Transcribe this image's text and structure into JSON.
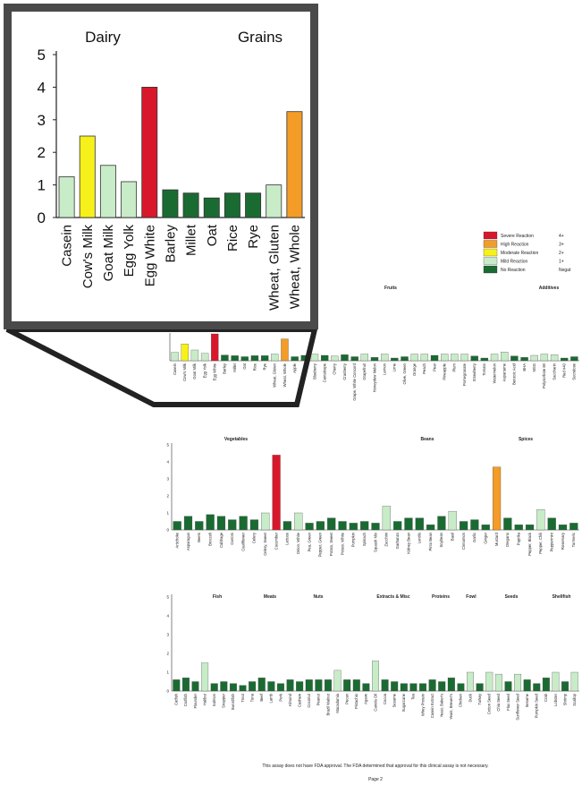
{
  "colors": {
    "severe": "#d8182a",
    "high": "#f39c27",
    "moderate": "#f6f11a",
    "mild": "#c8ebc8",
    "none": "#1a6b32",
    "frame": "#555555"
  },
  "legend": {
    "items": [
      {
        "label": "Severe Reaction",
        "range": "4+",
        "level": "severe"
      },
      {
        "label": "High Reaction",
        "range": "3+",
        "level": "high"
      },
      {
        "label": "Moderate Reaction",
        "range": "2+",
        "level": "moderate"
      },
      {
        "label": "Mild Reaction",
        "range": "1+",
        "level": "mild"
      },
      {
        "label": "No Reaction",
        "range": "Negat",
        "level": "none"
      }
    ]
  },
  "footer": {
    "note": "This assay does not have FDA approval. The FDA determined that approval for this clinical assay is not necessary.",
    "page": "Page 2"
  },
  "chart_data": [
    {
      "id": "zoom",
      "type": "bar",
      "groups": [
        "Dairy",
        "Grains"
      ],
      "yticks": [
        0,
        1,
        2,
        3,
        4,
        5
      ],
      "ylim": [
        0,
        5
      ],
      "categories": [
        "Casein",
        "Cow's Milk",
        "Goat Milk",
        "Egg Yolk",
        "Egg White",
        "Barley",
        "Millet",
        "Oat",
        "Rice",
        "Rye",
        "Wheat, Gluten",
        "Wheat, Whole"
      ],
      "values": [
        1.25,
        2.5,
        1.6,
        1.1,
        4.0,
        0.85,
        0.75,
        0.6,
        0.75,
        0.75,
        1.0,
        3.25
      ],
      "levels": [
        "mild",
        "moderate",
        "mild",
        "mild",
        "severe",
        "none",
        "none",
        "none",
        "none",
        "none",
        "mild",
        "high"
      ]
    },
    {
      "id": "panel1",
      "type": "bar",
      "groups": [
        "Fruits",
        "Additives"
      ],
      "categories": [
        "Casein",
        "Cow's Milk",
        "Goat Milk",
        "Egg Yolk",
        "Egg White",
        "Barley",
        "Millet",
        "Oat",
        "Rice",
        "Rye",
        "Wheat, Gluten",
        "Wheat, Whole",
        "Apple",
        "Banana",
        "Blueberry",
        "Cantaloupe",
        "Cherry",
        "Cranberry",
        "Grape, White Concord",
        "Grapefruit",
        "Honeydew Melon",
        "Lemon",
        "Lime",
        "Olive, Green",
        "Orange",
        "Peach",
        "Pear",
        "Pineapple",
        "Plum",
        "Pomegranate",
        "Strawberry",
        "Tomato",
        "Watermelon",
        "Aspartame",
        "Benzoic Acid",
        "BHA",
        "MSG",
        "Polysorbate 80",
        "Saccharin",
        "Red #40",
        "Sucralose"
      ],
      "values": [
        1.25,
        2.5,
        1.6,
        1.1,
        4.0,
        0.85,
        0.75,
        0.6,
        0.75,
        0.75,
        1.0,
        3.25,
        0.6,
        0.8,
        1.0,
        0.8,
        0.7,
        0.9,
        0.6,
        1.0,
        0.5,
        1.0,
        0.4,
        0.6,
        1.0,
        1.0,
        0.8,
        1.0,
        1.0,
        1.0,
        0.7,
        0.4,
        1.0,
        1.3,
        0.7,
        0.5,
        0.8,
        1.0,
        0.9,
        0.4,
        0.6
      ],
      "levels": [
        "mild",
        "moderate",
        "mild",
        "mild",
        "severe",
        "none",
        "none",
        "none",
        "none",
        "none",
        "mild",
        "high",
        "none",
        "none",
        "mild",
        "none",
        "mild",
        "none",
        "none",
        "mild",
        "none",
        "mild",
        "none",
        "none",
        "mild",
        "mild",
        "none",
        "mild",
        "mild",
        "mild",
        "none",
        "none",
        "mild",
        "mild",
        "none",
        "none",
        "mild",
        "mild",
        "mild",
        "none",
        "none"
      ]
    },
    {
      "id": "panel2",
      "type": "bar",
      "groups": [
        "Vegetables",
        "Beans",
        "Spices"
      ],
      "yticks": [
        0,
        1,
        2,
        3,
        4,
        5
      ],
      "categories": [
        "Artichoke",
        "Asparagus",
        "Beets",
        "Broccoli",
        "Cabbage",
        "Carrots",
        "Cauliflower",
        "Celery",
        "Celery, Sweet",
        "Cucumber",
        "Lettuce",
        "Onion, White",
        "Pea, Green",
        "Pepper, Green",
        "Potato, Sweet",
        "Potato, White",
        "Pumpkin",
        "Spinach",
        "Squash Mix",
        "Zucchini",
        "Garbanzo",
        "Kidney Bean",
        "Lentils",
        "Pinto Bean",
        "Soybean",
        "Basil",
        "Cinnamon",
        "Garlic",
        "Ginger",
        "Mustard",
        "Oregano",
        "Paprika",
        "Pepper, Black",
        "Pepper, Chili",
        "Peppermint",
        "Rosemary",
        "Turmeric"
      ],
      "values": [
        0.5,
        0.8,
        0.5,
        0.9,
        0.8,
        0.6,
        0.8,
        0.6,
        1.0,
        4.4,
        0.5,
        1.0,
        0.4,
        0.5,
        0.7,
        0.5,
        0.4,
        0.5,
        0.4,
        1.4,
        0.5,
        0.7,
        0.7,
        0.3,
        0.8,
        1.1,
        0.5,
        0.6,
        0.3,
        3.7,
        0.7,
        0.3,
        0.3,
        1.2,
        0.7,
        0.3,
        0.4
      ],
      "levels": [
        "none",
        "none",
        "none",
        "none",
        "none",
        "none",
        "none",
        "none",
        "mild",
        "severe",
        "none",
        "mild",
        "none",
        "none",
        "none",
        "none",
        "none",
        "none",
        "none",
        "mild",
        "none",
        "none",
        "none",
        "none",
        "none",
        "mild",
        "none",
        "none",
        "none",
        "high",
        "none",
        "none",
        "none",
        "mild",
        "none",
        "none",
        "none"
      ]
    },
    {
      "id": "panel3",
      "type": "bar",
      "groups": [
        "Fish",
        "Meats",
        "Nuts",
        "Extracts & Misc",
        "Proteins",
        "Fowl",
        "Seeds",
        "Shellfish"
      ],
      "yticks": [
        0,
        1,
        2,
        3,
        4,
        5
      ],
      "categories": [
        "Catfish",
        "Codfish",
        "Flounder",
        "Halibut",
        "Salmon",
        "Snapper",
        "Swordfish",
        "Trout",
        "Tuna",
        "Beef",
        "Lamb",
        "Pork",
        "Almond",
        "Cashew",
        "Coconut",
        "Peanut",
        "Brazil Walnut",
        "Macadamia",
        "Pecan",
        "Pistachio",
        "Agave",
        "Canola Oil",
        "Cocoa",
        "Sesame",
        "Sugarcane",
        "Tea",
        "Whey Protein",
        "Casein Extract",
        "Yeast, Baker's",
        "Yeast, Brewer's",
        "Chicken",
        "Duck",
        "Turkey",
        "Cotton Seed",
        "Chia Seed",
        "Flax Seed",
        "Sunflower Seed",
        "Sesame",
        "Pumpkin Seed",
        "Crab",
        "Lobster",
        "Shrimp",
        "Scallop"
      ],
      "values": [
        0.6,
        0.7,
        0.5,
        1.5,
        0.4,
        0.5,
        0.4,
        0.3,
        0.5,
        0.7,
        0.5,
        0.4,
        0.6,
        0.5,
        0.6,
        0.6,
        0.6,
        1.1,
        0.6,
        0.6,
        0.4,
        1.6,
        0.6,
        0.5,
        0.4,
        0.4,
        0.4,
        0.6,
        0.5,
        0.7,
        0.4,
        1.0,
        0.4,
        1.0,
        0.9,
        0.5,
        0.9,
        0.6,
        0.4,
        0.7,
        1.0,
        0.5,
        1.0
      ],
      "levels": [
        "none",
        "none",
        "none",
        "mild",
        "none",
        "none",
        "none",
        "none",
        "none",
        "none",
        "none",
        "none",
        "none",
        "none",
        "none",
        "none",
        "none",
        "mild",
        "none",
        "none",
        "none",
        "mild",
        "none",
        "none",
        "none",
        "none",
        "none",
        "none",
        "none",
        "none",
        "none",
        "mild",
        "none",
        "mild",
        "mild",
        "none",
        "mild",
        "none",
        "none",
        "none",
        "mild",
        "none",
        "mild"
      ]
    }
  ]
}
